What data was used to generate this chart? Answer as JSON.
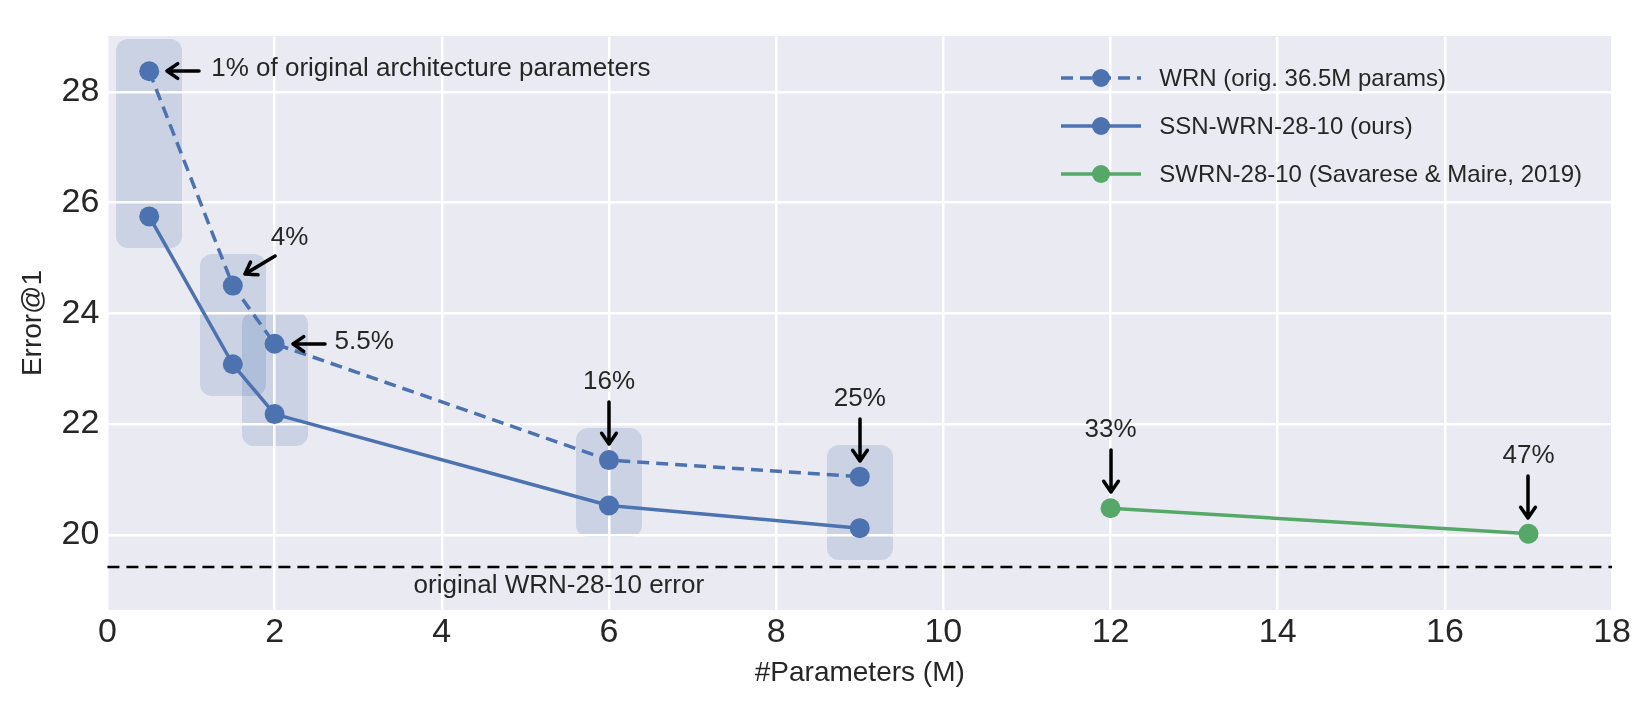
{
  "chart_data": {
    "type": "line",
    "xlabel": "#Parameters (M)",
    "ylabel": "Error@1",
    "series": [
      {
        "name": "WRN (orig. 36.5M params)",
        "color": "#4c72b0",
        "x": [
          0.5,
          1.5,
          2,
          6,
          9
        ],
        "values": [
          28.37,
          24.5,
          23.45,
          21.35,
          21.05
        ],
        "line_style": "dashed"
      },
      {
        "name": "SSN-WRN-28-10 (ours)",
        "color": "#4c72b0",
        "x": [
          0.5,
          1.5,
          2,
          6,
          9
        ],
        "values": [
          25.75,
          23.08,
          22.18,
          20.53,
          20.12
        ],
        "line_style": "solid"
      },
      {
        "name": "SWRN-28-10 (Savarese & Maire, 2019)",
        "color": "#55a868",
        "x": [
          12,
          17
        ],
        "values": [
          20.48,
          20.02
        ],
        "line_style": "solid"
      }
    ],
    "marker": "circle",
    "xlim": [
      0,
      18
    ],
    "xticks": [
      0,
      2,
      4,
      6,
      8,
      10,
      12,
      14,
      16,
      18
    ],
    "ylim": [
      18.65,
      29
    ],
    "yticks": [
      20,
      22,
      24,
      26,
      28
    ],
    "grid": true,
    "legend": "top right",
    "ref_lines": [
      {
        "axis": "y",
        "value": 19.42,
        "label": "original WRN-28-10 error",
        "color": "#000000",
        "line_style": "dashed"
      }
    ],
    "annotations": [
      {
        "text": "1% of original architecture parameters",
        "x": 0.5,
        "y": 28.37
      },
      {
        "text": "4%",
        "x": 1.5,
        "y": 24.5
      },
      {
        "text": "5.5%",
        "x": 2,
        "y": 23.45
      },
      {
        "text": "16%",
        "x": 6,
        "y": 21.35
      },
      {
        "text": "25%",
        "x": 9,
        "y": 21.05
      },
      {
        "text": "33%",
        "x": 12,
        "y": 20.48
      },
      {
        "text": "47%",
        "x": 17,
        "y": 20.02
      }
    ]
  }
}
